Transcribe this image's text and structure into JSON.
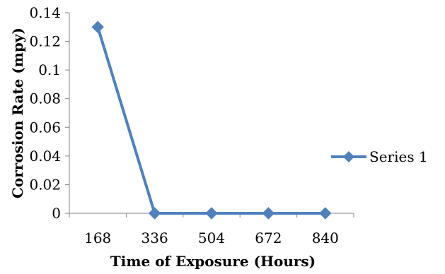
{
  "chart_data": {
    "type": "line",
    "title": "",
    "xlabel": "Time of Exposure (Hours)",
    "ylabel": "Corrosion Rate (mpy)",
    "categories": [
      "168",
      "336",
      "504",
      "672",
      "840"
    ],
    "series": [
      {
        "name": "Series 1",
        "values": [
          0.13,
          0,
          0,
          0,
          0
        ]
      }
    ],
    "yticks": [
      "0",
      "0.02",
      "0.04",
      "0.06",
      "0.08",
      "0.1",
      "0.12",
      "0.14"
    ],
    "ylim": [
      0,
      0.14
    ],
    "grid": false,
    "legend": "right",
    "series_color": "#4F81BD",
    "axis_color": "#868686"
  }
}
